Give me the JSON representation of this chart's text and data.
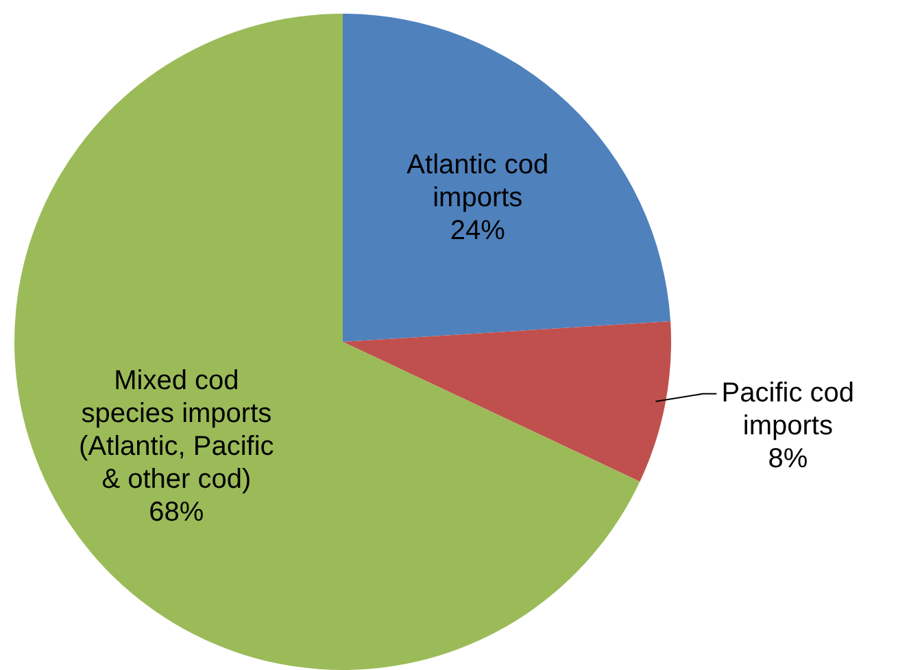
{
  "chart_data": {
    "type": "pie",
    "categories": [
      "Atlantic cod\nimports",
      "Pacific cod\nimports",
      "Mixed cod\nspecies imports\n(Atlantic, Pacific\n& other cod)"
    ],
    "values": [
      24,
      8,
      68
    ],
    "colors": [
      "#4f81bd",
      "#c0504d",
      "#9bbb59"
    ],
    "value_labels": [
      "24%",
      "8%",
      "68%"
    ],
    "legend": false
  }
}
